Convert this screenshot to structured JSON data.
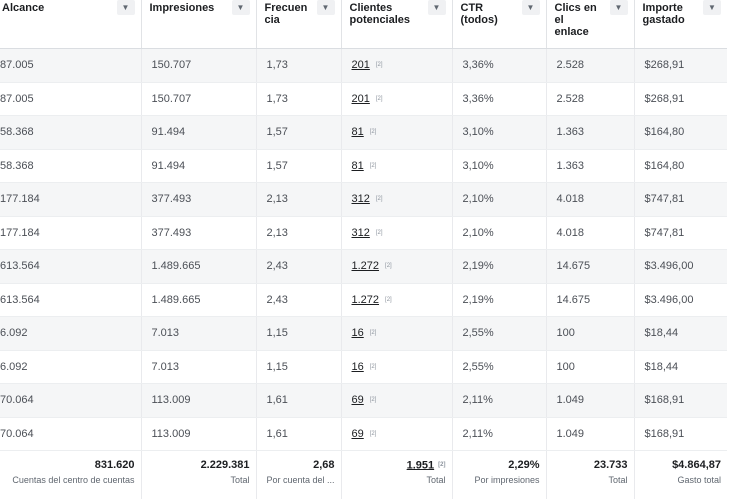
{
  "columns": [
    {
      "label": "Alcance"
    },
    {
      "label": "Impresiones"
    },
    {
      "label": "Frecuencia",
      "lines": [
        "Frecuen",
        "cia"
      ]
    },
    {
      "label": "Clientes potenciales",
      "lines": [
        "Clientes",
        "potenciales"
      ]
    },
    {
      "label": "CTR (todos)",
      "lines": [
        "CTR",
        "(todos)"
      ]
    },
    {
      "label": "Clics en el enlace",
      "lines": [
        "Clics en",
        "el",
        "enlace"
      ]
    },
    {
      "label": "Importe gastado",
      "lines": [
        "Importe",
        "gastado"
      ]
    }
  ],
  "footnote_marker": "[2]",
  "rows": [
    [
      "87.005",
      "150.707",
      "1,73",
      "201",
      "3,36%",
      "2.528",
      "$268,91"
    ],
    [
      "87.005",
      "150.707",
      "1,73",
      "201",
      "3,36%",
      "2.528",
      "$268,91"
    ],
    [
      "58.368",
      "91.494",
      "1,57",
      "81",
      "3,10%",
      "1.363",
      "$164,80"
    ],
    [
      "58.368",
      "91.494",
      "1,57",
      "81",
      "3,10%",
      "1.363",
      "$164,80"
    ],
    [
      "177.184",
      "377.493",
      "2,13",
      "312",
      "2,10%",
      "4.018",
      "$747,81"
    ],
    [
      "177.184",
      "377.493",
      "2,13",
      "312",
      "2,10%",
      "4.018",
      "$747,81"
    ],
    [
      "613.564",
      "1.489.665",
      "2,43",
      "1.272",
      "2,19%",
      "14.675",
      "$3.496,00"
    ],
    [
      "613.564",
      "1.489.665",
      "2,43",
      "1.272",
      "2,19%",
      "14.675",
      "$3.496,00"
    ],
    [
      "6.092",
      "7.013",
      "1,15",
      "16",
      "2,55%",
      "100",
      "$18,44"
    ],
    [
      "6.092",
      "7.013",
      "1,15",
      "16",
      "2,55%",
      "100",
      "$18,44"
    ],
    [
      "70.064",
      "113.009",
      "1,61",
      "69",
      "2,11%",
      "1.049",
      "$168,91"
    ],
    [
      "70.064",
      "113.009",
      "1,61",
      "69",
      "2,11%",
      "1.049",
      "$168,91"
    ]
  ],
  "totals": [
    {
      "value": "831.620",
      "label": "Cuentas del centro de cuentas"
    },
    {
      "value": "2.229.381",
      "label": "Total"
    },
    {
      "value": "2,68",
      "label": "Por cuenta del ..."
    },
    {
      "value": "1.951",
      "label": "Total"
    },
    {
      "value": "2,29%",
      "label": "Por impresiones"
    },
    {
      "value": "23.733",
      "label": "Total"
    },
    {
      "value": "$4.864,87",
      "label": "Gasto total"
    }
  ]
}
